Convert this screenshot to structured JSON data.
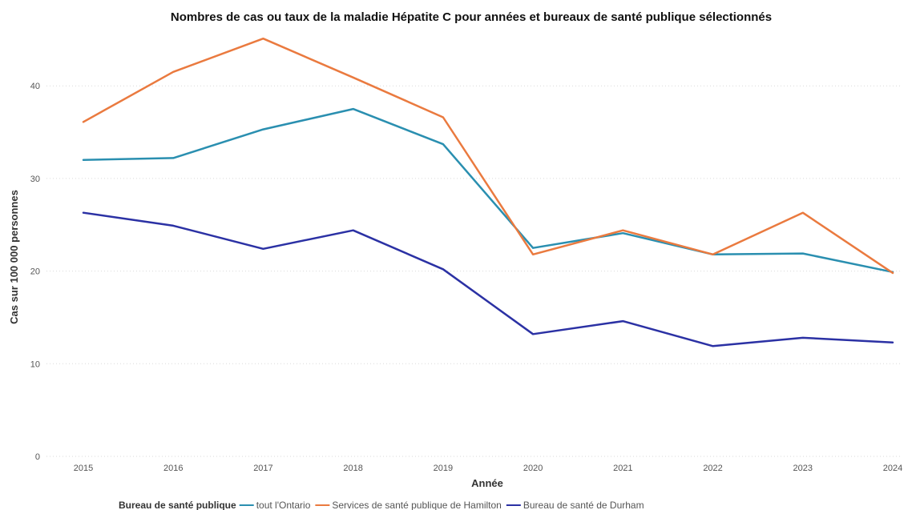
{
  "chart_data": {
    "type": "line",
    "title": "Nombres de cas ou taux de la maladie Hépatite C pour années et bureaux de santé publique sélectionnés",
    "xlabel": "Année",
    "ylabel": "Cas sur 100 000 personnes",
    "categories": [
      "2015",
      "2016",
      "2017",
      "2018",
      "2019",
      "2020",
      "2021",
      "2022",
      "2023",
      "2024"
    ],
    "yticks": [
      "0",
      "10",
      "20",
      "30",
      "40"
    ],
    "ylim": [
      0,
      46
    ],
    "grid": "horizontal dotted",
    "legend": {
      "title": "Bureau de santé publique",
      "placement": "bottom"
    },
    "series": [
      {
        "name": "tout l'Ontario",
        "color": "#2a8fb0",
        "values": [
          32.0,
          32.2,
          35.3,
          37.5,
          33.7,
          22.5,
          24.1,
          21.8,
          21.9,
          19.9
        ]
      },
      {
        "name": "Services de santé publique de Hamilton",
        "color": "#ea7a3f",
        "values": [
          36.1,
          41.5,
          45.1,
          40.9,
          36.6,
          21.8,
          24.4,
          21.8,
          26.3,
          19.8
        ]
      },
      {
        "name": "Bureau de santé de Durham",
        "color": "#2b31a4",
        "values": [
          26.3,
          24.9,
          22.4,
          24.4,
          20.2,
          13.2,
          14.6,
          11.9,
          12.8,
          12.3
        ]
      }
    ]
  }
}
